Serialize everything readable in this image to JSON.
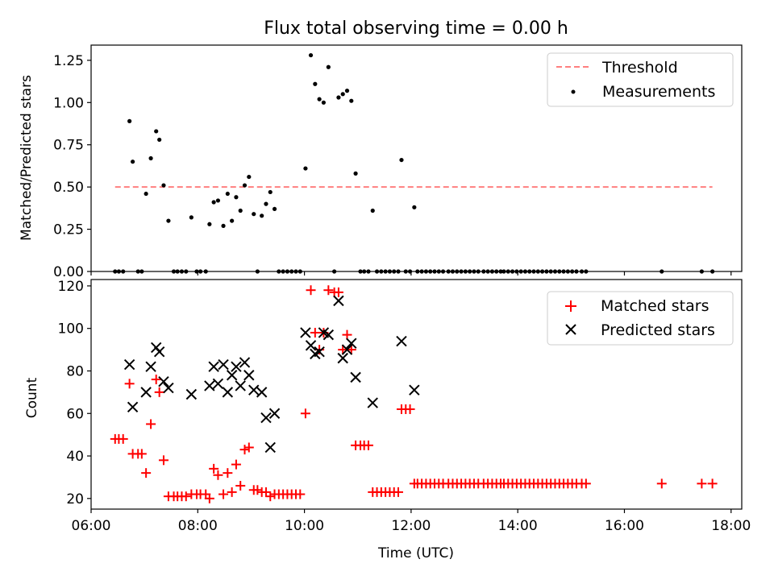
{
  "title": "Flux total observing time = 0.00 h",
  "chart_data": [
    {
      "type": "scatter",
      "panel": "top",
      "ylabel": "Matched/Predicted stars",
      "xlabel": "",
      "xlim": [
        6.0,
        18.2
      ],
      "ylim": [
        0,
        1.34
      ],
      "yticks": [
        0,
        0.25,
        0.5,
        0.75,
        1.0,
        1.25
      ],
      "ytick_labels": [
        "0.00",
        "0.25",
        "0.50",
        "0.75",
        "1.00",
        "1.25"
      ],
      "grid": false,
      "legend_position": "top-right",
      "threshold": {
        "name": "Threshold",
        "y": 0.5,
        "x_range": [
          6.45,
          17.65
        ],
        "color": "#ff7f7f"
      },
      "series": [
        {
          "name": "Measurements",
          "color": "#000000",
          "x": [
            6.45,
            6.52,
            6.6,
            6.72,
            6.78,
            6.88,
            6.95,
            7.03,
            7.12,
            7.22,
            7.28,
            7.36,
            7.45,
            7.55,
            7.62,
            7.7,
            7.78,
            7.88,
            7.98,
            8.05,
            8.15,
            8.22,
            8.3,
            8.38,
            8.48,
            8.56,
            8.64,
            8.72,
            8.8,
            8.88,
            8.96,
            9.05,
            9.12,
            9.2,
            9.28,
            9.36,
            9.44,
            9.52,
            9.6,
            9.68,
            9.76,
            9.84,
            9.92,
            10.02,
            10.12,
            10.2,
            10.28,
            10.36,
            10.45,
            10.56,
            10.64,
            10.72,
            10.8,
            10.88,
            10.96,
            11.05,
            11.12,
            11.2,
            11.28,
            11.36,
            11.44,
            11.52,
            11.6,
            11.68,
            11.76,
            11.82,
            11.9,
            11.98,
            12.06,
            12.12,
            12.2,
            12.28,
            12.36,
            12.44,
            12.52,
            12.6,
            12.7,
            12.78,
            12.86,
            12.94,
            13.02,
            13.1,
            13.18,
            13.26,
            13.36,
            13.44,
            13.52,
            13.6,
            13.68,
            13.74,
            13.82,
            13.9,
            13.98,
            14.06,
            14.14,
            14.22,
            14.3,
            14.38,
            14.46,
            14.54,
            14.62,
            14.7,
            14.78,
            14.86,
            14.94,
            15.02,
            15.1,
            15.2,
            15.28,
            16.7,
            17.45,
            17.65
          ],
          "y": [
            0,
            0,
            0,
            0.89,
            0.65,
            0,
            0,
            0.46,
            0.67,
            0.83,
            0.78,
            0.51,
            0.3,
            0,
            0,
            0,
            0,
            0.32,
            0,
            0,
            0,
            0.28,
            0.41,
            0.42,
            0.27,
            0.46,
            0.3,
            0.44,
            0.36,
            0.51,
            0.56,
            0.34,
            0,
            0.33,
            0.4,
            0.47,
            0.37,
            0,
            0,
            0,
            0,
            0,
            0,
            0.61,
            1.28,
            1.11,
            1.02,
            1.0,
            1.21,
            0,
            1.03,
            1.05,
            1.07,
            1.01,
            0.58,
            0,
            0,
            0,
            0.36,
            0,
            0,
            0,
            0,
            0,
            0,
            0.66,
            0,
            0,
            0.38,
            0,
            0,
            0,
            0,
            0,
            0,
            0,
            0,
            0,
            0,
            0,
            0,
            0,
            0,
            0,
            0,
            0,
            0,
            0,
            0,
            0,
            0,
            0,
            0,
            0,
            0,
            0,
            0,
            0,
            0,
            0,
            0,
            0,
            0,
            0,
            0,
            0,
            0,
            0,
            0,
            0,
            0,
            0
          ]
        }
      ]
    },
    {
      "type": "scatter",
      "panel": "bottom",
      "xlabel": "Time (UTC)",
      "ylabel": "Count",
      "xlim": [
        6.0,
        18.2
      ],
      "ylim": [
        15,
        123
      ],
      "xticks": [
        6,
        8,
        10,
        12,
        14,
        16,
        18
      ],
      "xtick_labels": [
        "06:00",
        "08:00",
        "10:00",
        "12:00",
        "14:00",
        "16:00",
        "18:00"
      ],
      "yticks": [
        20,
        40,
        60,
        80,
        100,
        120
      ],
      "ytick_labels": [
        "20",
        "40",
        "60",
        "80",
        "100",
        "120"
      ],
      "grid": false,
      "legend_position": "top-right",
      "series": [
        {
          "name": "Matched stars",
          "marker": "+",
          "color": "#ff0000",
          "x": [
            6.45,
            6.52,
            6.6,
            6.72,
            6.78,
            6.88,
            6.95,
            7.03,
            7.12,
            7.22,
            7.28,
            7.36,
            7.45,
            7.55,
            7.62,
            7.7,
            7.78,
            7.88,
            7.98,
            8.05,
            8.15,
            8.22,
            8.3,
            8.38,
            8.48,
            8.56,
            8.64,
            8.72,
            8.8,
            8.88,
            8.96,
            9.05,
            9.12,
            9.2,
            9.28,
            9.36,
            9.44,
            9.52,
            9.6,
            9.68,
            9.76,
            9.84,
            9.92,
            10.02,
            10.12,
            10.2,
            10.28,
            10.36,
            10.45,
            10.56,
            10.64,
            10.72,
            10.8,
            10.88,
            10.96,
            11.05,
            11.12,
            11.2,
            11.28,
            11.36,
            11.44,
            11.52,
            11.6,
            11.68,
            11.76,
            11.82,
            11.9,
            11.98,
            12.06,
            12.12,
            12.2,
            12.28,
            12.36,
            12.44,
            12.52,
            12.6,
            12.7,
            12.78,
            12.86,
            12.94,
            13.02,
            13.1,
            13.18,
            13.26,
            13.36,
            13.44,
            13.52,
            13.6,
            13.68,
            13.74,
            13.82,
            13.9,
            13.98,
            14.06,
            14.14,
            14.22,
            14.3,
            14.38,
            14.46,
            14.54,
            14.62,
            14.7,
            14.78,
            14.86,
            14.94,
            15.02,
            15.1,
            15.2,
            15.28,
            16.7,
            17.45,
            17.65
          ],
          "y": [
            48,
            48,
            48,
            74,
            41,
            41,
            41,
            32,
            55,
            76,
            70,
            38,
            21,
            21,
            21,
            21,
            21,
            22,
            22,
            22,
            22,
            20,
            34,
            31,
            22,
            32,
            23,
            36,
            26,
            43,
            44,
            24,
            24,
            23,
            23,
            21,
            22,
            22,
            22,
            22,
            22,
            22,
            22,
            60,
            118,
            98,
            90,
            98,
            118,
            117,
            117,
            90,
            97,
            90,
            45,
            45,
            45,
            45,
            23,
            23,
            23,
            23,
            23,
            23,
            23,
            62,
            62,
            62,
            27,
            27,
            27,
            27,
            27,
            27,
            27,
            27,
            27,
            27,
            27,
            27,
            27,
            27,
            27,
            27,
            27,
            27,
            27,
            27,
            27,
            27,
            27,
            27,
            27,
            27,
            27,
            27,
            27,
            27,
            27,
            27,
            27,
            27,
            27,
            27,
            27,
            27,
            27,
            27,
            27,
            27,
            27,
            27
          ]
        },
        {
          "name": "Predicted stars",
          "marker": "x",
          "color": "#000000",
          "x": [
            6.72,
            6.78,
            7.03,
            7.12,
            7.22,
            7.28,
            7.36,
            7.45,
            7.88,
            8.22,
            8.3,
            8.38,
            8.48,
            8.56,
            8.64,
            8.72,
            8.8,
            8.88,
            8.96,
            9.05,
            9.2,
            9.28,
            9.36,
            9.44,
            10.02,
            10.12,
            10.2,
            10.28,
            10.36,
            10.45,
            10.64,
            10.72,
            10.8,
            10.88,
            10.96,
            11.28,
            11.82,
            12.06
          ],
          "y": [
            83,
            63,
            70,
            82,
            91,
            89,
            75,
            72,
            69,
            73,
            82,
            74,
            83,
            70,
            78,
            82,
            73,
            84,
            78,
            71,
            70,
            58,
            44,
            60,
            98,
            92,
            88,
            89,
            98,
            97,
            113,
            86,
            90,
            93,
            77,
            65,
            94,
            71
          ]
        }
      ]
    }
  ]
}
